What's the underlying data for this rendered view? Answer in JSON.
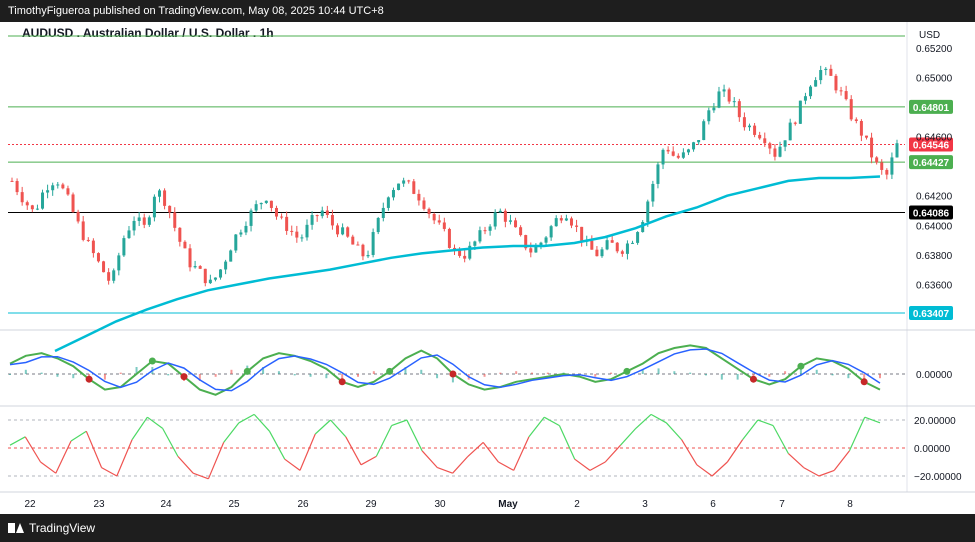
{
  "header": {
    "published_by": "TimothyFigueroa published on TradingView.com, May 08, 2025 10:44 UTC+8"
  },
  "footer": {
    "brand": "TradingView"
  },
  "chart_data": {
    "type": "candlestick",
    "title": "AUDUSD . Australian Dollar / U.S. Dollar . 1h",
    "currency_label": "USD",
    "price_axis": {
      "ticks": [
        "0.65200",
        "0.65000",
        "0.64600",
        "0.64200",
        "0.64000",
        "0.63800",
        "0.63600"
      ],
      "tick_values": [
        0.652,
        0.65,
        0.646,
        0.642,
        0.64,
        0.638,
        0.636
      ],
      "range": [
        0.634,
        0.6528
      ]
    },
    "x_axis": {
      "labels": [
        "22",
        "23",
        "24",
        "25",
        "26",
        "29",
        "30",
        "May",
        "2",
        "3",
        "6",
        "7",
        "8"
      ]
    },
    "horizontal_levels": [
      {
        "value": 0.6528,
        "label": "",
        "color": "#4caf50"
      },
      {
        "value": 0.64801,
        "label": "0.64801",
        "color": "#4caf50"
      },
      {
        "value": 0.64546,
        "label": "0.64546",
        "color": "#f23645"
      },
      {
        "value": 0.64427,
        "label": "0.64427",
        "color": "#4caf50"
      },
      {
        "value": 0.64086,
        "label": "0.64086",
        "color": "#000000"
      },
      {
        "value": 0.63407,
        "label": "0.63407",
        "color": "#00bcd4"
      }
    ],
    "price_path": [
      0.643,
      0.6418,
      0.6408,
      0.6426,
      0.6432,
      0.6418,
      0.64,
      0.6385,
      0.6372,
      0.636,
      0.639,
      0.6405,
      0.6398,
      0.6425,
      0.6415,
      0.6392,
      0.6375,
      0.6368,
      0.636,
      0.6372,
      0.639,
      0.6402,
      0.6412,
      0.642,
      0.6405,
      0.6398,
      0.639,
      0.6402,
      0.641,
      0.64,
      0.6394,
      0.6385,
      0.6378,
      0.64,
      0.6422,
      0.643,
      0.6426,
      0.6418,
      0.6405,
      0.6395,
      0.6382,
      0.638,
      0.639,
      0.64,
      0.641,
      0.6402,
      0.639,
      0.6382,
      0.639,
      0.6402,
      0.641,
      0.6398,
      0.6385,
      0.638,
      0.6388,
      0.6383,
      0.639,
      0.6405,
      0.643,
      0.6455,
      0.6445,
      0.6448,
      0.6458,
      0.6478,
      0.649,
      0.6485,
      0.647,
      0.6465,
      0.646,
      0.6448,
      0.6462,
      0.6475,
      0.6495,
      0.6505,
      0.65,
      0.6488,
      0.6472,
      0.646,
      0.6442,
      0.6432,
      0.6454
    ],
    "ma_path": [
      0.6315,
      0.6325,
      0.6335,
      0.6343,
      0.635,
      0.6356,
      0.636,
      0.6364,
      0.6367,
      0.637,
      0.6374,
      0.6378,
      0.6381,
      0.6383,
      0.6385,
      0.6386,
      0.6386,
      0.6388,
      0.6392,
      0.6398,
      0.6406,
      0.6412,
      0.642,
      0.6425,
      0.643,
      0.6432,
      0.6432,
      0.6433
    ],
    "oscillator_axis": {
      "ticks": [
        "0.00000"
      ]
    },
    "momentum_axis": {
      "ticks": [
        "20.00000",
        "0.00000",
        "−20.00000"
      ]
    },
    "oscillator_path": [
      0.4,
      0.7,
      0.8,
      0.6,
      0.3,
      -0.2,
      -0.6,
      -0.5,
      0.0,
      0.5,
      0.4,
      -0.1,
      -0.6,
      -0.8,
      -0.5,
      0.1,
      0.6,
      0.8,
      0.7,
      0.5,
      0.2,
      -0.3,
      -0.5,
      -0.3,
      0.1,
      0.6,
      0.9,
      0.6,
      0.0,
      -0.4,
      -0.6,
      -0.5,
      -0.3,
      -0.2,
      -0.1,
      0.0,
      -0.1,
      -0.3,
      -0.2,
      0.1,
      0.4,
      0.8,
      1.0,
      1.1,
      1.0,
      0.6,
      0.2,
      -0.2,
      -0.4,
      -0.2,
      0.3,
      0.6,
      0.5,
      0.2,
      -0.3,
      -0.6
    ],
    "momentum_path": [
      2,
      8,
      -10,
      -18,
      5,
      12,
      -14,
      -20,
      6,
      22,
      14,
      -6,
      -18,
      -22,
      4,
      18,
      24,
      12,
      -8,
      -16,
      10,
      20,
      8,
      -12,
      -6,
      16,
      20,
      -2,
      -14,
      -18,
      -6,
      4,
      -10,
      -16,
      8,
      22,
      16,
      -8,
      -16,
      -10,
      2,
      14,
      24,
      18,
      6,
      -12,
      -20,
      -10,
      6,
      20,
      16,
      -4,
      -14,
      -20,
      -16,
      -2,
      22,
      18
    ]
  }
}
